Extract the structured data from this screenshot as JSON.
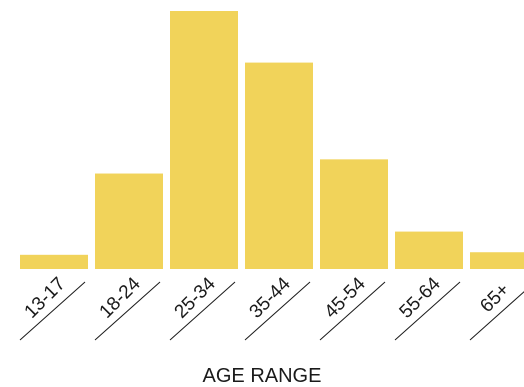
{
  "chart_data": {
    "type": "bar",
    "xlabel": "AGE RANGE",
    "ylabel": "",
    "categories": [
      "13-17",
      "18-24",
      "25-34",
      "35-44",
      "45-54",
      "55-64",
      "65+"
    ],
    "values": [
      5.5,
      37,
      100,
      80,
      42.5,
      14.5,
      6.5
    ],
    "ylim": [
      0,
      100
    ],
    "grid": false,
    "colors": {
      "bar": "#f1d35a",
      "text": "#1a1a1a"
    }
  }
}
